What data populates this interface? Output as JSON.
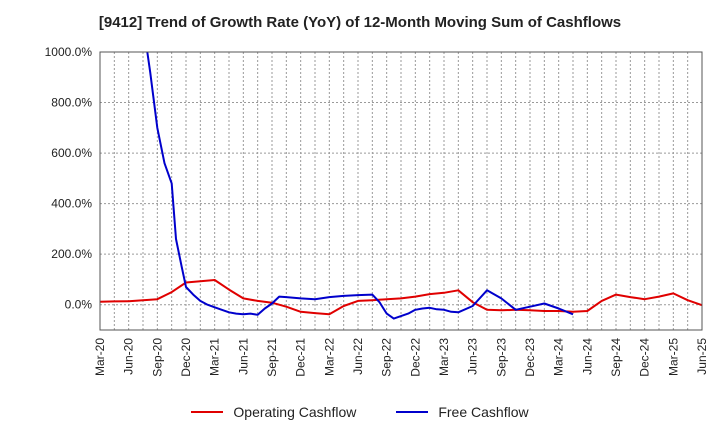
{
  "chart_data": {
    "type": "line",
    "title": "[9412]  Trend of Growth Rate (YoY) of 12-Month Moving Sum of Cashflows",
    "ylim": [
      -100,
      1000
    ],
    "y_ticks": [
      "1000.0%",
      "800.0%",
      "600.0%",
      "400.0%",
      "200.0%",
      "0.0%"
    ],
    "y_tick_values": [
      1000,
      800,
      600,
      400,
      200,
      0
    ],
    "x_tick_labels": [
      "Mar-20",
      "Jun-20",
      "Sep-20",
      "Dec-20",
      "Mar-21",
      "Jun-21",
      "Sep-21",
      "Dec-21",
      "Mar-22",
      "Jun-22",
      "Sep-22",
      "Dec-22",
      "Mar-23",
      "Jun-23",
      "Sep-23",
      "Dec-23",
      "Mar-24",
      "Jun-24",
      "Sep-24",
      "Dec-24",
      "Mar-25",
      "Jun-25"
    ],
    "grid": true,
    "legend_position": "bottom",
    "series": [
      {
        "name": "Operating Cashflow",
        "color": "#e00000",
        "points": [
          [
            0,
            12
          ],
          [
            1,
            13
          ],
          [
            2,
            14
          ],
          [
            3,
            18
          ],
          [
            4,
            22
          ],
          [
            5,
            50
          ],
          [
            6,
            88
          ],
          [
            7,
            93
          ],
          [
            8,
            98
          ],
          [
            9,
            60
          ],
          [
            10,
            25
          ],
          [
            11,
            15
          ],
          [
            12,
            8
          ],
          [
            13,
            -8
          ],
          [
            14,
            -28
          ],
          [
            15,
            -33
          ],
          [
            16,
            -38
          ],
          [
            17,
            -5
          ],
          [
            18,
            15
          ],
          [
            19,
            18
          ],
          [
            20,
            22
          ],
          [
            21,
            25
          ],
          [
            22,
            32
          ],
          [
            23,
            42
          ],
          [
            24,
            47
          ],
          [
            25,
            57
          ],
          [
            26,
            10
          ],
          [
            27,
            -20
          ],
          [
            28,
            -22
          ],
          [
            29,
            -20
          ],
          [
            30,
            -22
          ],
          [
            31,
            -25
          ],
          [
            32,
            -25
          ],
          [
            33,
            -28
          ],
          [
            34,
            -25
          ],
          [
            35,
            15
          ],
          [
            36,
            40
          ],
          [
            37,
            30
          ],
          [
            38,
            22
          ],
          [
            39,
            32
          ],
          [
            40,
            45
          ],
          [
            41,
            18
          ],
          [
            42,
            -2
          ]
        ]
      },
      {
        "name": "Free Cashflow",
        "color": "#0000cc",
        "points": [
          [
            3,
            1500
          ],
          [
            3.3,
            1000
          ],
          [
            3.5,
            920
          ],
          [
            4,
            700
          ],
          [
            4.5,
            560
          ],
          [
            5,
            480
          ],
          [
            5.3,
            260
          ],
          [
            5.7,
            150
          ],
          [
            6,
            70
          ],
          [
            6.5,
            40
          ],
          [
            7,
            15
          ],
          [
            7.5,
            0
          ],
          [
            8,
            -10
          ],
          [
            8.5,
            -20
          ],
          [
            9,
            -30
          ],
          [
            9.5,
            -35
          ],
          [
            10,
            -38
          ],
          [
            10.5,
            -35
          ],
          [
            11,
            -40
          ],
          [
            11.5,
            -15
          ],
          [
            12,
            5
          ],
          [
            12.5,
            32
          ],
          [
            13,
            30
          ],
          [
            14,
            25
          ],
          [
            15,
            22
          ],
          [
            16,
            30
          ],
          [
            17,
            35
          ],
          [
            18,
            38
          ],
          [
            19,
            40
          ],
          [
            19.5,
            10
          ],
          [
            20,
            -35
          ],
          [
            20.5,
            -55
          ],
          [
            21,
            -45
          ],
          [
            21.5,
            -35
          ],
          [
            22,
            -20
          ],
          [
            22.5,
            -15
          ],
          [
            23,
            -12
          ],
          [
            23.5,
            -18
          ],
          [
            24,
            -20
          ],
          [
            24.5,
            -28
          ],
          [
            25,
            -30
          ],
          [
            26,
            -5
          ],
          [
            27,
            57
          ],
          [
            28,
            25
          ],
          [
            29,
            -20
          ],
          [
            30,
            -8
          ],
          [
            31,
            5
          ],
          [
            32,
            -15
          ],
          [
            33,
            -38
          ]
        ]
      }
    ]
  }
}
